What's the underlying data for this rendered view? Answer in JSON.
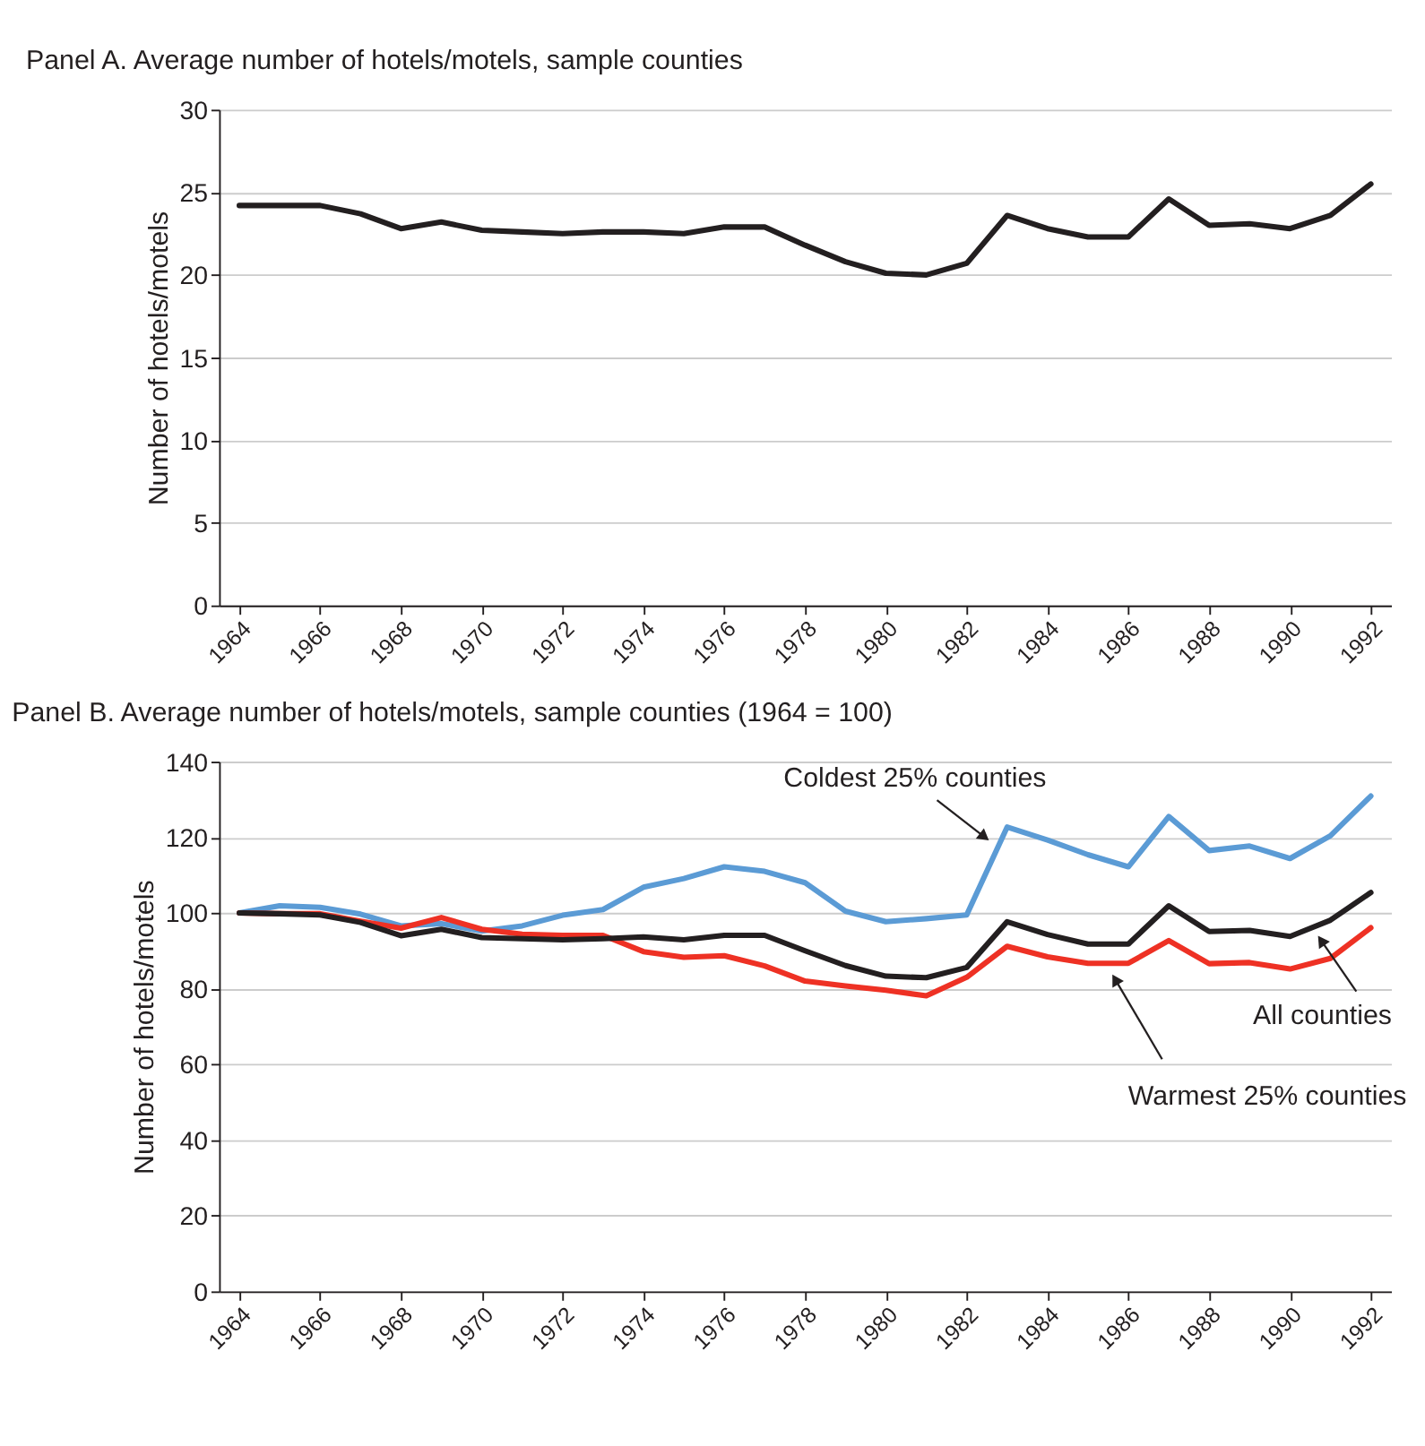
{
  "chart_data": [
    {
      "type": "line",
      "title": "Panel A. Average number of hotels/motels, sample counties",
      "ylabel": "Number of hotels/motels",
      "x": [
        1964,
        1965,
        1966,
        1967,
        1968,
        1969,
        1970,
        1971,
        1972,
        1973,
        1974,
        1975,
        1976,
        1977,
        1978,
        1979,
        1980,
        1981,
        1982,
        1983,
        1984,
        1985,
        1986,
        1987,
        1988,
        1989,
        1990,
        1991,
        1992
      ],
      "series": [
        {
          "color": "#231f20",
          "values": [
            24.2,
            24.2,
            24.2,
            23.7,
            22.8,
            23.2,
            22.7,
            22.6,
            22.5,
            22.6,
            22.6,
            22.5,
            22.9,
            22.9,
            21.8,
            20.8,
            20.1,
            20.0,
            20.7,
            23.6,
            22.8,
            22.3,
            22.3,
            24.6,
            23.0,
            23.1,
            22.8,
            23.6,
            25.5
          ]
        }
      ],
      "xlim": [
        1963.5,
        1992.5
      ],
      "xticks": [
        1964,
        1966,
        1968,
        1970,
        1972,
        1974,
        1976,
        1978,
        1980,
        1982,
        1984,
        1986,
        1988,
        1990,
        1992
      ],
      "ylim": [
        0,
        30
      ],
      "yticks": [
        0,
        5,
        10,
        15,
        20,
        25,
        30
      ],
      "grid": "y",
      "legend": false,
      "marker": "none",
      "line_style": "solid"
    },
    {
      "type": "line",
      "title": "Panel B. Average number of hotels/motels, sample counties (1964 = 100)",
      "ylabel": "Number of hotels/motels",
      "x": [
        1964,
        1965,
        1966,
        1967,
        1968,
        1969,
        1970,
        1971,
        1972,
        1973,
        1974,
        1975,
        1976,
        1977,
        1978,
        1979,
        1980,
        1981,
        1982,
        1983,
        1984,
        1985,
        1986,
        1987,
        1988,
        1989,
        1990,
        1991,
        1992
      ],
      "series": [
        {
          "color": "#5b9bd5",
          "values": [
            100,
            101.9,
            101.5,
            99.7,
            96.6,
            97.2,
            95.2,
            96.6,
            99.4,
            100.9,
            106.8,
            109.1,
            112.2,
            111,
            108,
            100.5,
            97.7,
            98.5,
            99.5,
            122.7,
            119.3,
            115.4,
            112.2,
            125.5,
            116.5,
            117.7,
            114.4,
            120.4,
            130.9
          ]
        },
        {
          "color": "#ee3124",
          "values": [
            100,
            99.8,
            99.8,
            97.8,
            96,
            98.8,
            95.7,
            94.4,
            94.1,
            94.1,
            89.8,
            88.3,
            88.7,
            86,
            82,
            80.7,
            79.6,
            78.1,
            83,
            91.2,
            88.4,
            86.7,
            86.7,
            92.7,
            86.6,
            86.9,
            85.2,
            88,
            96.1
          ]
        },
        {
          "color": "#231f20",
          "values": [
            100,
            99.8,
            99.5,
            97.5,
            94,
            95.7,
            93.5,
            93.2,
            92.9,
            93.2,
            93.7,
            92.9,
            94.1,
            94.1,
            90,
            86.1,
            83.3,
            82.9,
            85.6,
            97.7,
            94.3,
            91.8,
            91.8,
            101.9,
            95.1,
            95.4,
            93.8,
            98.1,
            105.4
          ]
        }
      ],
      "annotations": [
        {
          "text": "Coldest 25% counties",
          "x": 1982.4,
          "y": 120.4
        },
        {
          "text": "All counties",
          "x": 1990.8,
          "y": 92.3
        },
        {
          "text": "Warmest 25% counties",
          "x": 1985.7,
          "y": 82
        }
      ],
      "xlim": [
        1963.5,
        1992.5
      ],
      "xticks": [
        1964,
        1966,
        1968,
        1970,
        1972,
        1974,
        1976,
        1978,
        1980,
        1982,
        1984,
        1986,
        1988,
        1990,
        1992
      ],
      "ylim": [
        0,
        140
      ],
      "yticks": [
        0,
        20,
        40,
        60,
        80,
        100,
        120,
        140
      ],
      "grid": "y",
      "legend": false,
      "marker": "none",
      "line_style": "solid"
    }
  ]
}
